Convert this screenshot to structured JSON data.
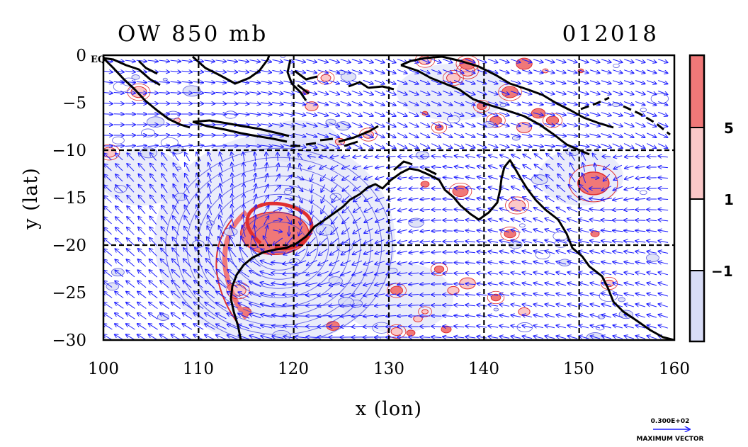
{
  "title_left": "OW 850 mb",
  "title_right": "012018",
  "xlabel": "x (lon)",
  "ylabel": "y (lat)",
  "x_ticks": [
    "100",
    "110",
    "120",
    "130",
    "140",
    "150",
    "160"
  ],
  "y_ticks": [
    "0",
    "−5",
    "−10",
    "−15",
    "−20",
    "−25",
    "−30"
  ],
  "eq_label": "EQ",
  "colorbar": {
    "labels": [
      "5",
      "1",
      "−1"
    ],
    "colors": [
      "#f07878",
      "#fbc8c8",
      "#ffffff",
      "#d8dcf6"
    ]
  },
  "vector_key": {
    "value": "0.300E+02",
    "label": "MAXIMUM VECTOR"
  },
  "colors": {
    "vector": "#1a1aff",
    "contour_pos": "#e03030",
    "contour_neg": "#3333dd",
    "fill_pos": "#f07878",
    "fill_neg": "#d8dcf6",
    "coast": "#000000"
  },
  "chart_data": {
    "type": "map",
    "domain": {
      "lon": [
        100,
        160
      ],
      "lat": [
        -30,
        0
      ]
    },
    "grid_lon": [
      110,
      120,
      130,
      140,
      150
    ],
    "grid_lat": [
      -10,
      -20
    ],
    "colorbar_levels": [
      -1,
      1,
      5
    ],
    "features": [
      {
        "name": "tropical-cyclone-vortex",
        "lon": 118,
        "lat": -19.5
      },
      {
        "name": "coral-sea-vortex",
        "lon": 151.5,
        "lat": -13.5
      }
    ]
  }
}
